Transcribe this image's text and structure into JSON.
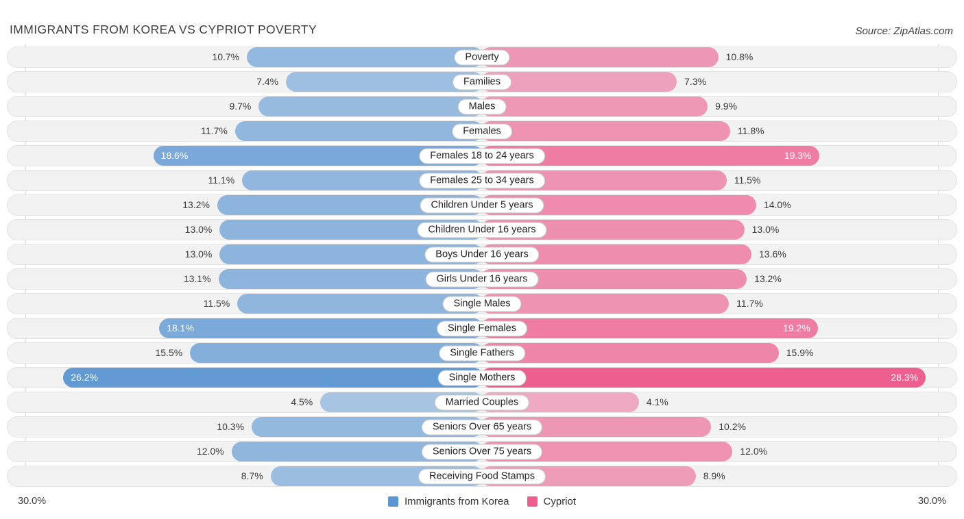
{
  "header": {
    "title": "IMMIGRANTS FROM KOREA VS CYPRIOT POVERTY",
    "source": "Source: ZipAtlas.com"
  },
  "axis": {
    "left_label": "30.0%",
    "right_label": "30.0%",
    "max_each_side": 30.0
  },
  "legend": {
    "series1_label": "Immigrants from Korea",
    "series2_label": "Cypriot"
  },
  "colors": {
    "korea_blue": "#5b96d2",
    "korea_blue_rgb": [
      91,
      150,
      210
    ],
    "cypriot_pink": "#ec5f8f",
    "cypriot_pink_rgb": [
      236,
      95,
      143
    ],
    "row_bg": "#f2f2f3",
    "row_border": "#e2e2e3"
  },
  "chart_data": {
    "type": "bar",
    "subtype": "mirrored-horizontal",
    "title": "IMMIGRANTS FROM KOREA VS CYPRIOT POVERTY",
    "value_suffix": "%",
    "axis_range_each_side": [
      0,
      30
    ],
    "categories": [
      "Poverty",
      "Families",
      "Males",
      "Females",
      "Females 18 to 24 years",
      "Females 25 to 34 years",
      "Children Under 5 years",
      "Children Under 16 years",
      "Boys Under 16 years",
      "Girls Under 16 years",
      "Single Males",
      "Single Females",
      "Single Fathers",
      "Single Mothers",
      "Married Couples",
      "Seniors Over 65 years",
      "Seniors Over 75 years",
      "Receiving Food Stamps"
    ],
    "series": [
      {
        "name": "Immigrants from Korea",
        "side": "left",
        "color": "#5b96d2",
        "values": [
          10.7,
          7.4,
          9.7,
          11.7,
          18.6,
          11.1,
          13.2,
          13.0,
          13.0,
          13.1,
          11.5,
          18.1,
          15.5,
          26.2,
          4.5,
          10.3,
          12.0,
          8.7
        ]
      },
      {
        "name": "Cypriot",
        "side": "right",
        "color": "#ec5f8f",
        "values": [
          10.8,
          7.3,
          9.9,
          11.8,
          19.3,
          11.5,
          14.0,
          13.0,
          13.6,
          13.2,
          11.7,
          19.2,
          15.9,
          28.3,
          4.1,
          10.2,
          12.0,
          8.9
        ]
      }
    ]
  }
}
